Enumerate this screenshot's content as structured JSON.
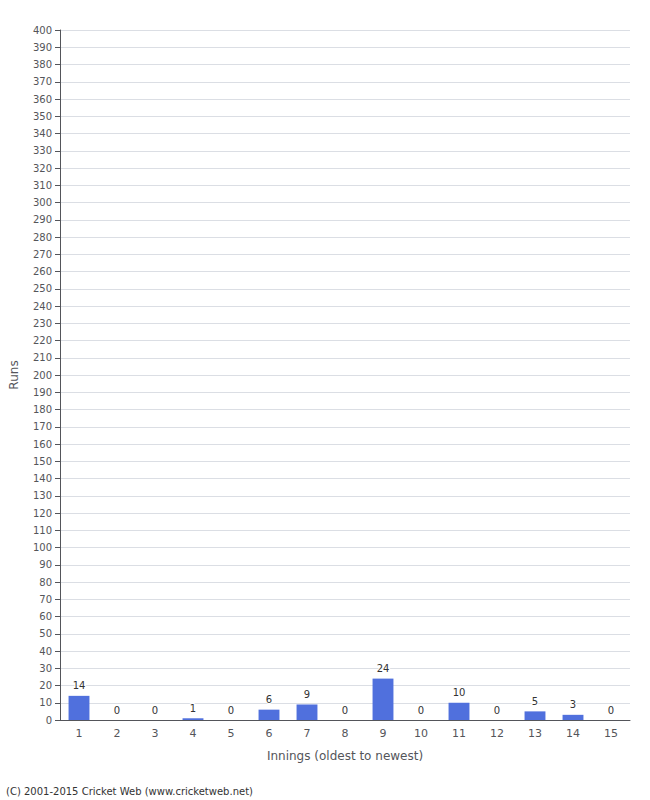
{
  "chart_data": {
    "type": "bar",
    "xlabel": "Innings (oldest to newest)",
    "ylabel": "Runs",
    "categories": [
      1,
      2,
      3,
      4,
      5,
      6,
      7,
      8,
      9,
      10,
      11,
      12,
      13,
      14,
      15
    ],
    "values": [
      14,
      0,
      0,
      1,
      0,
      6,
      9,
      0,
      24,
      0,
      10,
      0,
      5,
      3,
      0
    ],
    "ylim": [
      0,
      400
    ],
    "yticks": [
      0,
      10,
      20,
      30,
      40,
      50,
      60,
      70,
      80,
      90,
      100,
      110,
      120,
      130,
      140,
      150,
      160,
      170,
      180,
      190,
      200,
      210,
      220,
      230,
      240,
      250,
      260,
      270,
      280,
      290,
      300,
      310,
      320,
      330,
      340,
      350,
      360,
      370,
      380,
      390,
      400
    ],
    "grid": true,
    "data_labels": true,
    "annotations": [
      "(C) 2001-2015 Cricket Web (www.cricketweb.net)"
    ]
  }
}
